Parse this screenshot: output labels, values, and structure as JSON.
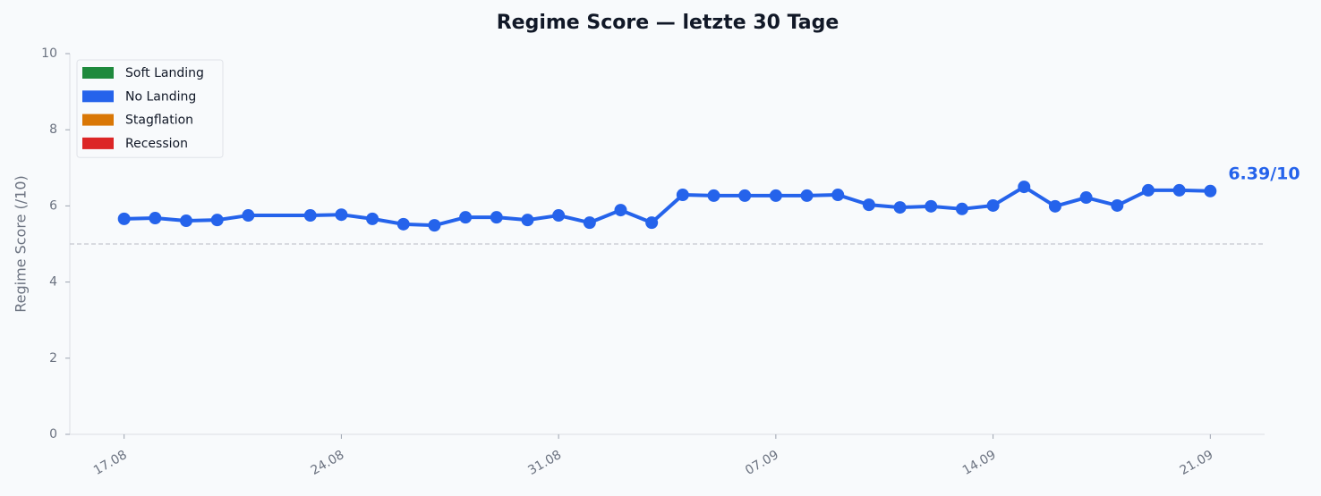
{
  "chart_data": {
    "type": "line",
    "title": "Regime Score — letzte 30 Tage",
    "ylabel": "Regime Score (/10)",
    "x": [
      "17.08",
      "18.08",
      "19.08",
      "20.08",
      "21.08",
      "23.08",
      "24.08",
      "25.08",
      "26.08",
      "27.08",
      "28.08",
      "29.08",
      "30.08",
      "31.08",
      "01.09",
      "02.09",
      "03.09",
      "04.09",
      "05.09",
      "06.09",
      "07.09",
      "08.09",
      "09.09",
      "10.09",
      "11.09",
      "12.09",
      "13.09",
      "14.09",
      "15.09",
      "16.09",
      "17.09",
      "18.09",
      "19.09",
      "20.09",
      "21.09"
    ],
    "series": [
      {
        "name": "Regime Score",
        "color": "#2563eb",
        "values": [
          5.66,
          5.68,
          5.61,
          5.63,
          5.75,
          5.75,
          5.77,
          5.66,
          5.52,
          5.49,
          5.7,
          5.7,
          5.63,
          5.75,
          5.56,
          5.89,
          5.56,
          6.29,
          6.27,
          6.27,
          6.27,
          6.27,
          6.29,
          6.03,
          5.96,
          5.99,
          5.92,
          6.01,
          6.5,
          5.99,
          6.22,
          6.01,
          6.41,
          6.41,
          6.39
        ]
      }
    ],
    "xticks": [
      "17.08",
      "24.08",
      "31.08",
      "07.09",
      "14.09",
      "21.09"
    ],
    "ylim": [
      0,
      10
    ],
    "yticks": [
      0,
      2,
      4,
      6,
      8,
      10
    ],
    "reference_line": 5,
    "annotation": "6.39/10",
    "legend_position": "upper left",
    "legend": [
      {
        "name": "Soft Landing",
        "color": "#1f8a3d"
      },
      {
        "name": "No Landing",
        "color": "#2563eb"
      },
      {
        "name": "Stagflation",
        "color": "#d97706"
      },
      {
        "name": "Recession",
        "color": "#dc2626"
      }
    ]
  }
}
